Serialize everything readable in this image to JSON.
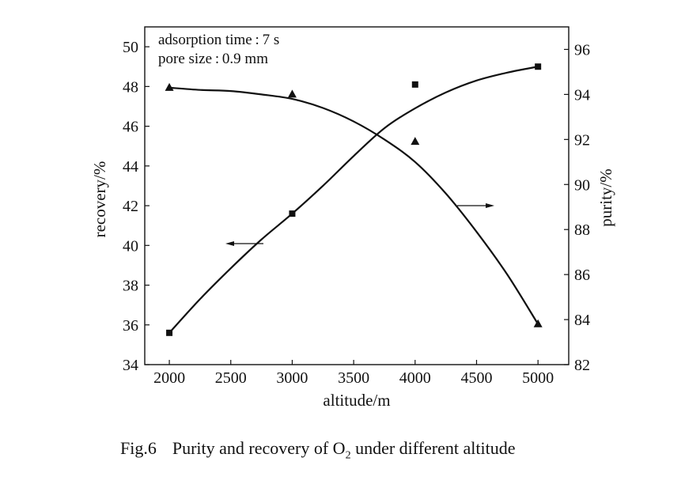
{
  "chart_data": {
    "type": "line",
    "x": [
      2000,
      3000,
      4000,
      5000
    ],
    "xlim": [
      1800,
      5250
    ],
    "xticks": [
      2000,
      2500,
      3000,
      3500,
      4000,
      4500,
      5000
    ],
    "xlabel": "altitude/m",
    "ylabel_left": "recovery/%",
    "ylim_left": [
      34,
      51
    ],
    "yticks_left": [
      34,
      36,
      38,
      40,
      42,
      44,
      46,
      48,
      50
    ],
    "ylabel_right": "purity/%",
    "ylim_right": [
      82,
      97
    ],
    "yticks_right": [
      82,
      84,
      86,
      88,
      90,
      92,
      94,
      96
    ],
    "series": [
      {
        "name": "recovery",
        "axis": "left",
        "marker": "square",
        "values": [
          35.6,
          41.6,
          48.1,
          49.0
        ],
        "fit_x": [
          2000,
          2250,
          2500,
          2750,
          3000,
          3250,
          3500,
          3750,
          4000,
          4250,
          4500,
          4750,
          5000
        ],
        "fit_y": [
          35.6,
          37.3,
          38.85,
          40.3,
          41.6,
          43.0,
          44.5,
          45.9,
          46.9,
          47.7,
          48.3,
          48.7,
          49.0
        ]
      },
      {
        "name": "purity",
        "axis": "right",
        "marker": "triangle",
        "values": [
          94.3,
          94.0,
          91.9,
          83.8
        ],
        "fit_x": [
          2000,
          2250,
          2500,
          2750,
          3000,
          3250,
          3500,
          3750,
          4000,
          4250,
          4500,
          4750,
          5000
        ],
        "fit_y": [
          94.3,
          94.2,
          94.15,
          94.0,
          93.8,
          93.4,
          92.8,
          92.0,
          91.0,
          89.6,
          87.9,
          86.0,
          83.8
        ]
      }
    ],
    "annotations": {
      "line1": "adsorption time : 7 s",
      "line2": "pore size : 0.9 mm"
    }
  },
  "caption": {
    "label": "Fig.6",
    "text_before": "Purity and recovery of O",
    "subscript": "2",
    "text_after": " under different altitude"
  }
}
